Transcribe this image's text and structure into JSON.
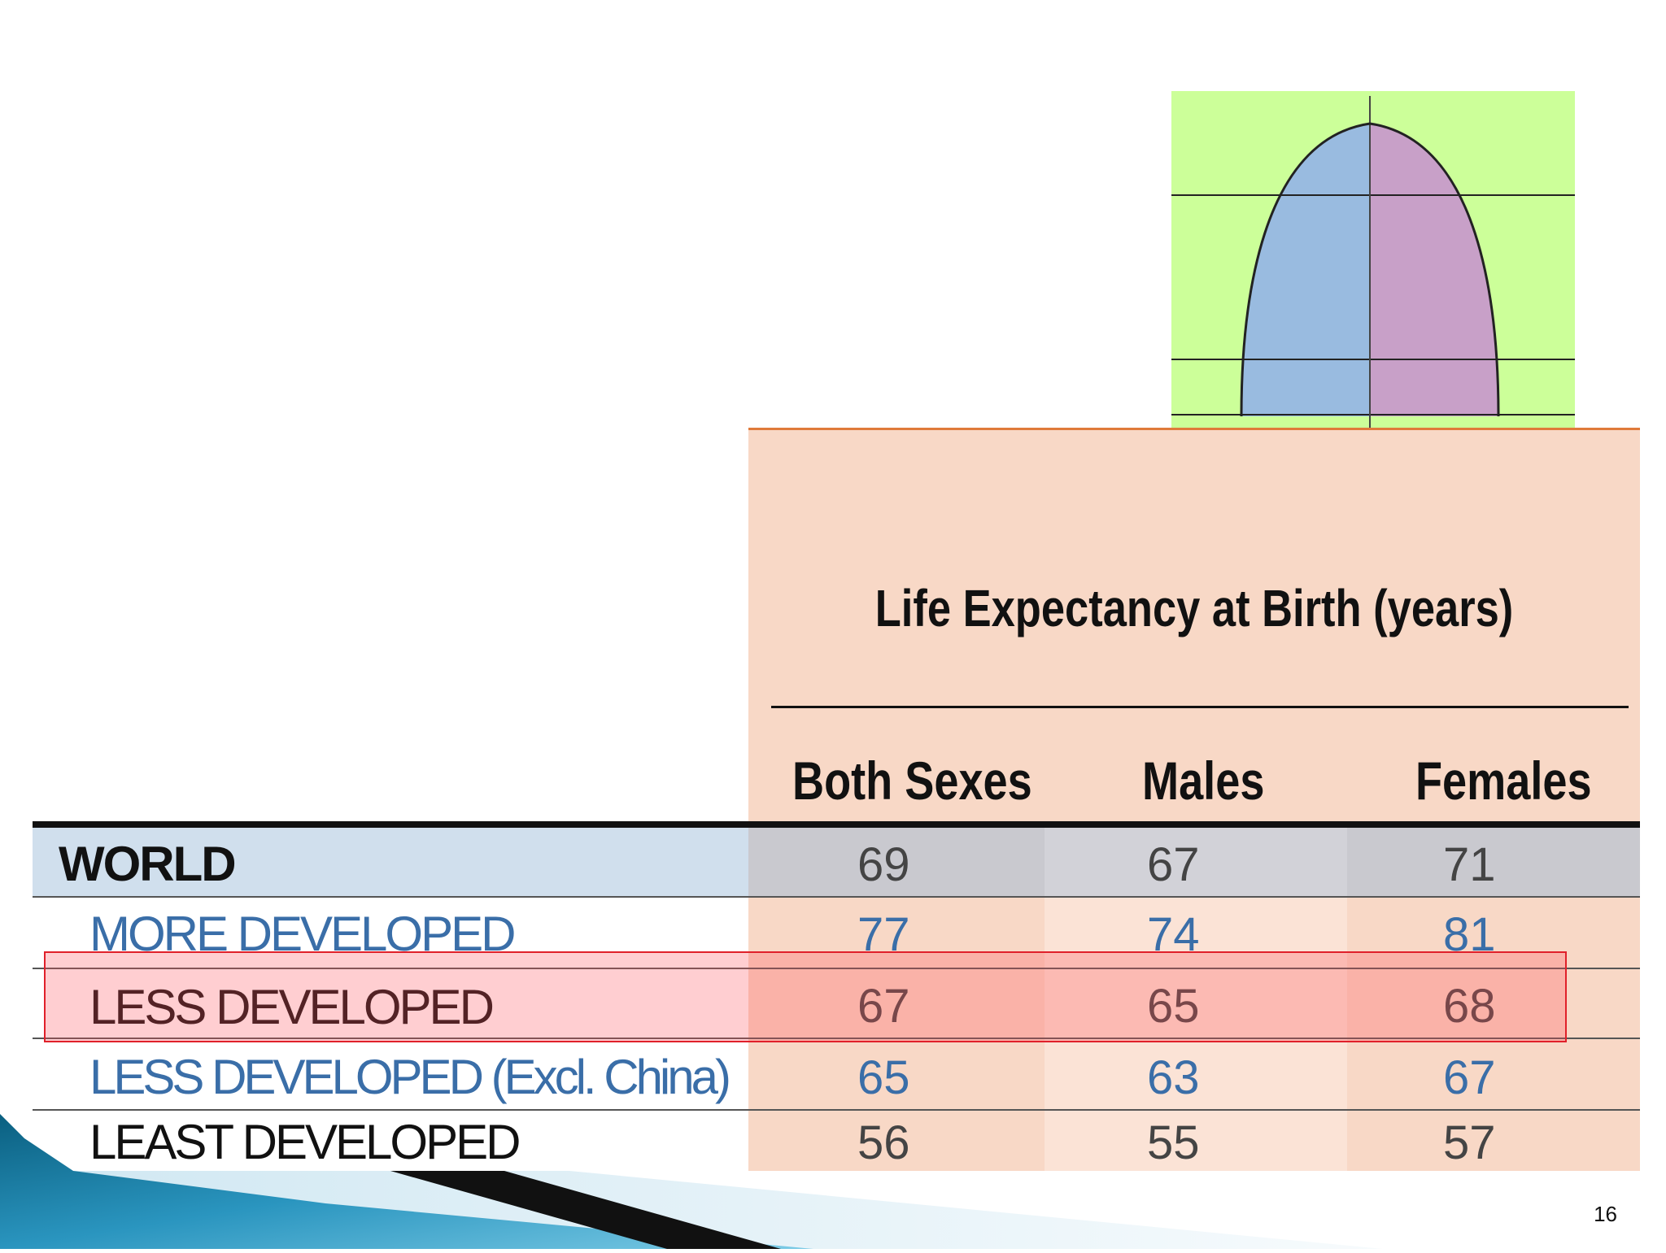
{
  "title": "Life Expectancy at Birth (years)",
  "columns": [
    "Both Sexes",
    "Males",
    "Females"
  ],
  "rows": [
    {
      "label": "WORLD",
      "values": [
        "69",
        "67",
        "71"
      ]
    },
    {
      "label": "MORE DEVELOPED",
      "values": [
        "77",
        "74",
        "81"
      ]
    },
    {
      "label": "LESS DEVELOPED",
      "values": [
        "67",
        "65",
        "68"
      ]
    },
    {
      "label": "LESS DEVELOPED (Excl. China)",
      "values": [
        "65",
        "63",
        "67"
      ]
    },
    {
      "label": "LEAST DEVELOPED",
      "values": [
        "56",
        "55",
        "57"
      ]
    }
  ],
  "highlighted_row": "LESS DEVELOPED",
  "page_number": "16",
  "colors": {
    "pyramid_bg": "#ccff99",
    "male": "#99bbe0",
    "female": "#c8a0c8",
    "header_bg": "#f8d8c6",
    "world_row_bg": "#d0dfed",
    "blue_text": "#3a6ea8"
  }
}
